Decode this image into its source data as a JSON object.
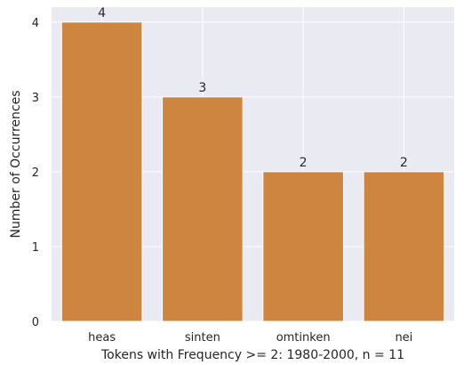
{
  "chart_data": {
    "type": "bar",
    "categories": [
      "heas",
      "sinten",
      "omtinken",
      "nei"
    ],
    "values": [
      4,
      3,
      2,
      2
    ],
    "data_labels": [
      "4",
      "3",
      "2",
      "2"
    ],
    "title": "",
    "xlabel": "Tokens with Frequency >= 2: 1980-2000, n = 11",
    "ylabel": "Number of Occurrences",
    "ylim": [
      0,
      4.2
    ],
    "yticks": [
      0,
      1,
      2,
      3,
      4
    ],
    "ytick_labels": [
      "0",
      "1",
      "2",
      "3",
      "4"
    ],
    "grid": true,
    "bar_color": "#cd853f",
    "background_color": "#eaeaf2",
    "grid_color": "#ffffff"
  }
}
